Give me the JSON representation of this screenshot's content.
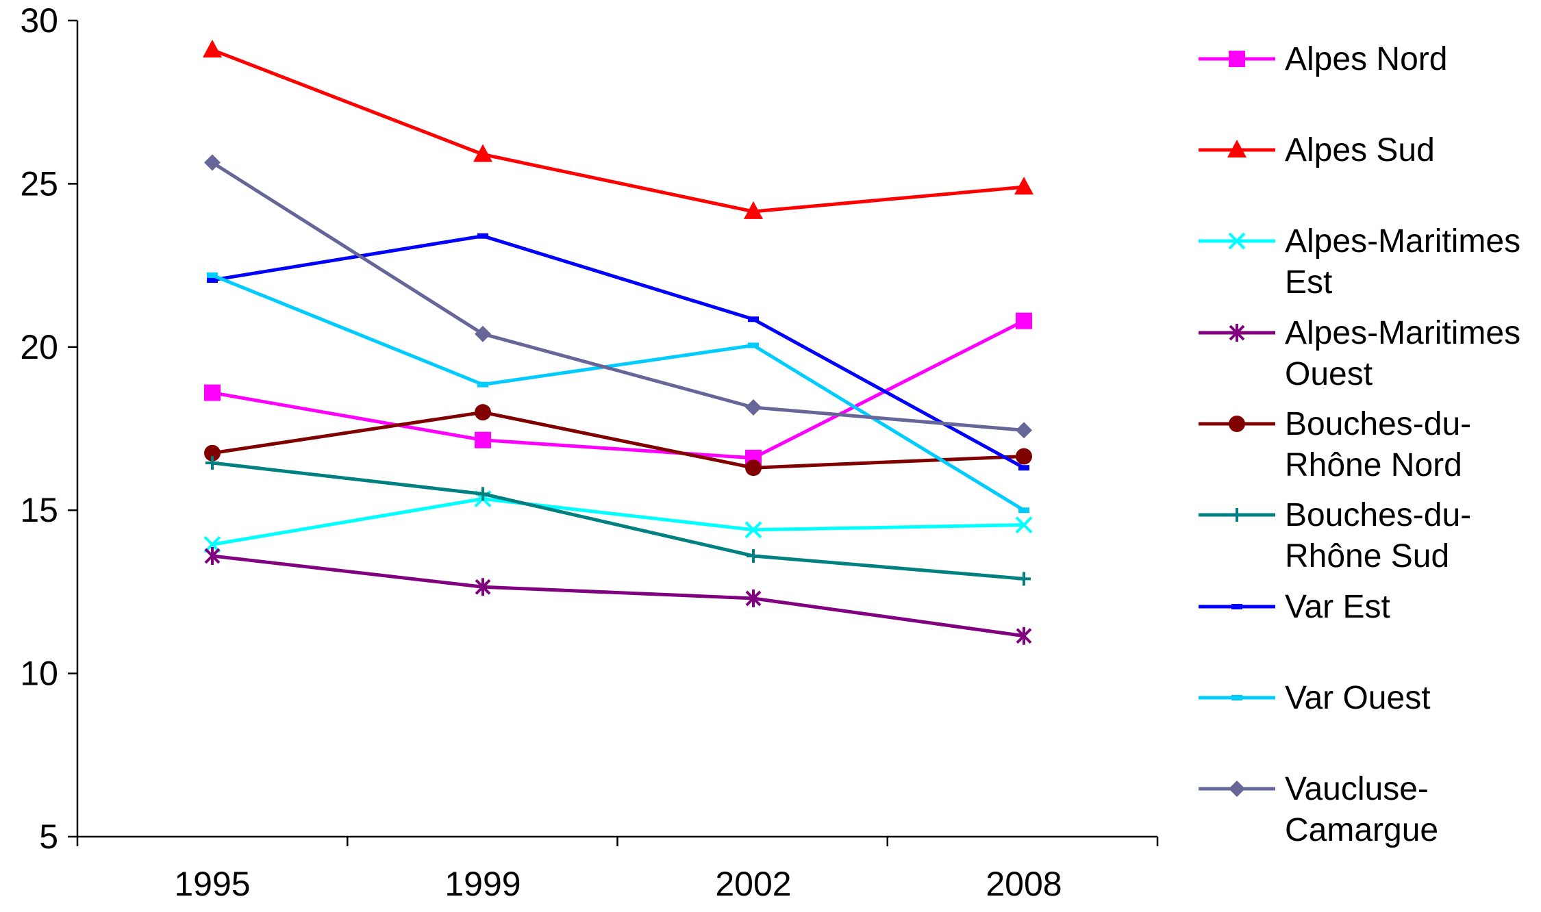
{
  "chart_data": {
    "type": "line",
    "title": "",
    "xlabel": "",
    "ylabel": "",
    "categories": [
      "1995",
      "1999",
      "2002",
      "2008"
    ],
    "ylim": [
      5,
      30
    ],
    "yticks": [
      "5",
      "10",
      "15",
      "20",
      "25",
      "30"
    ],
    "grid": false,
    "legend_position": "right",
    "series": [
      {
        "name": [
          "Alpes Nord"
        ],
        "color": "#FF00FF",
        "marker": "square",
        "values": [
          18.6,
          17.15,
          16.6,
          20.8
        ]
      },
      {
        "name": [
          "Alpes Sud"
        ],
        "color": "#FF0000",
        "marker": "triangle",
        "values": [
          29.1,
          25.9,
          24.15,
          24.9
        ]
      },
      {
        "name": [
          "Alpes-Maritimes",
          "Est"
        ],
        "color": "#00FFFF",
        "marker": "x",
        "values": [
          13.95,
          15.35,
          14.4,
          14.55
        ]
      },
      {
        "name": [
          "Alpes-Maritimes",
          "Ouest"
        ],
        "color": "#800080",
        "marker": "star",
        "values": [
          13.6,
          12.65,
          12.3,
          11.15
        ]
      },
      {
        "name": [
          "Bouches-du-",
          "Rhône Nord"
        ],
        "color": "#800000",
        "marker": "circle",
        "values": [
          16.75,
          18.0,
          16.3,
          16.65
        ]
      },
      {
        "name": [
          "Bouches-du-",
          "Rhône Sud"
        ],
        "color": "#008080",
        "marker": "plus",
        "values": [
          16.45,
          15.5,
          13.6,
          12.9
        ]
      },
      {
        "name": [
          "Var Est"
        ],
        "color": "#0000FF",
        "marker": "dash",
        "values": [
          22.05,
          23.4,
          20.85,
          16.3
        ]
      },
      {
        "name": [
          "Var Ouest"
        ],
        "color": "#00CCFF",
        "marker": "dash",
        "values": [
          22.2,
          18.85,
          20.05,
          15.0
        ]
      },
      {
        "name": [
          "Vaucluse-",
          "Camargue"
        ],
        "color": "#666699",
        "marker": "diamond",
        "values": [
          25.65,
          20.4,
          18.15,
          17.45
        ]
      }
    ]
  }
}
